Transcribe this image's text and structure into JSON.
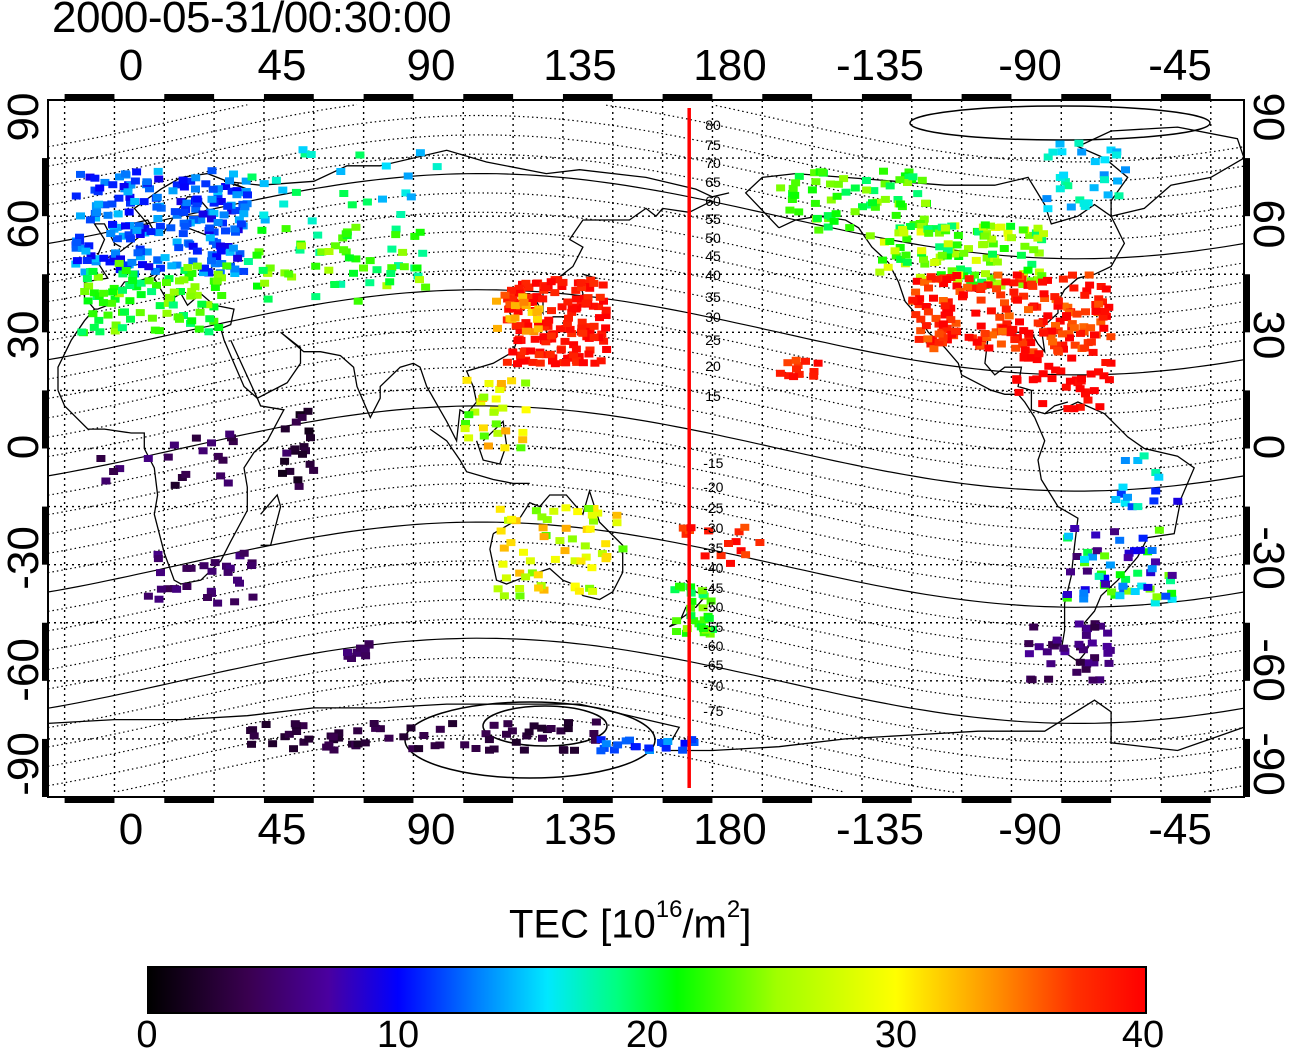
{
  "timestamp": "2000-05-31/00:30:00",
  "x_ticks": [
    "0",
    "45",
    "90",
    "135",
    "180",
    "-135",
    "-90",
    "-45"
  ],
  "y_ticks": [
    "90",
    "60",
    "30",
    "0",
    "-30",
    "-60",
    "-90"
  ],
  "contour_labels_north": [
    "80",
    "75",
    "70",
    "65",
    "60",
    "55",
    "50",
    "45",
    "40",
    "35",
    "30",
    "25",
    "20",
    "15"
  ],
  "contour_labels_south": [
    "-15",
    "-20",
    "-25",
    "-30",
    "-35",
    "-40",
    "-45",
    "-50",
    "-55",
    "-60",
    "-65",
    "-70",
    "-75"
  ],
  "colorbar": {
    "title": "TEC  [10",
    "title_sup1": "16",
    "title_mid": "/m",
    "title_sup2": "2",
    "title_end": "]",
    "ticks": [
      "0",
      "10",
      "20",
      "30",
      "40"
    ],
    "colors": [
      "#000000",
      "#4a00a0",
      "#0000ff",
      "#00e8ff",
      "#00ff00",
      "#ffff00",
      "#ff9000",
      "#ff0000"
    ]
  },
  "meridian_line": {
    "color": "#ff0000",
    "longitude": 173
  },
  "map": {
    "lon_range": [
      -20,
      340
    ],
    "lat_range": [
      -90,
      90
    ],
    "grid": true
  }
}
